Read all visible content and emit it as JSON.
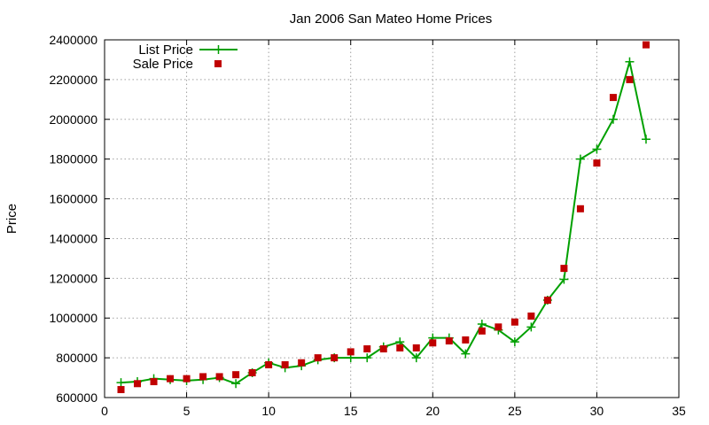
{
  "chart_data": {
    "type": "line",
    "title": "Jan 2006 San Mateo Home Prices",
    "xlabel": "",
    "ylabel": "Price",
    "xlim": [
      0,
      35
    ],
    "ylim": [
      600000,
      2400000
    ],
    "xticks": [
      0,
      5,
      10,
      15,
      20,
      25,
      30,
      35
    ],
    "yticks": [
      600000,
      800000,
      1000000,
      1200000,
      1400000,
      1600000,
      1800000,
      2000000,
      2200000,
      2400000
    ],
    "grid": true,
    "legend_position": "top-left",
    "x": [
      1,
      2,
      3,
      4,
      5,
      6,
      7,
      8,
      9,
      10,
      11,
      12,
      13,
      14,
      15,
      16,
      17,
      18,
      19,
      20,
      21,
      22,
      23,
      24,
      25,
      26,
      27,
      28,
      29,
      30,
      31,
      32,
      33
    ],
    "series": [
      {
        "name": "List Price",
        "style": "line-with-plus-markers",
        "color": "#00a000",
        "values": [
          675000,
          680000,
          695000,
          690000,
          685000,
          690000,
          700000,
          670000,
          725000,
          775000,
          750000,
          760000,
          790000,
          800000,
          800000,
          800000,
          855000,
          880000,
          800000,
          900000,
          900000,
          820000,
          970000,
          940000,
          880000,
          955000,
          1090000,
          1195000,
          1800000,
          1850000,
          2000000,
          2290000,
          1900000
        ]
      },
      {
        "name": "Sale Price",
        "style": "square-markers",
        "color": "#c00000",
        "values": [
          640000,
          670000,
          680000,
          695000,
          695000,
          705000,
          705000,
          715000,
          725000,
          765000,
          765000,
          775000,
          800000,
          800000,
          830000,
          845000,
          845000,
          850000,
          850000,
          875000,
          885000,
          890000,
          935000,
          955000,
          980000,
          1010000,
          1090000,
          1250000,
          1550000,
          1780000,
          2110000,
          2200000,
          2375000
        ]
      }
    ]
  }
}
